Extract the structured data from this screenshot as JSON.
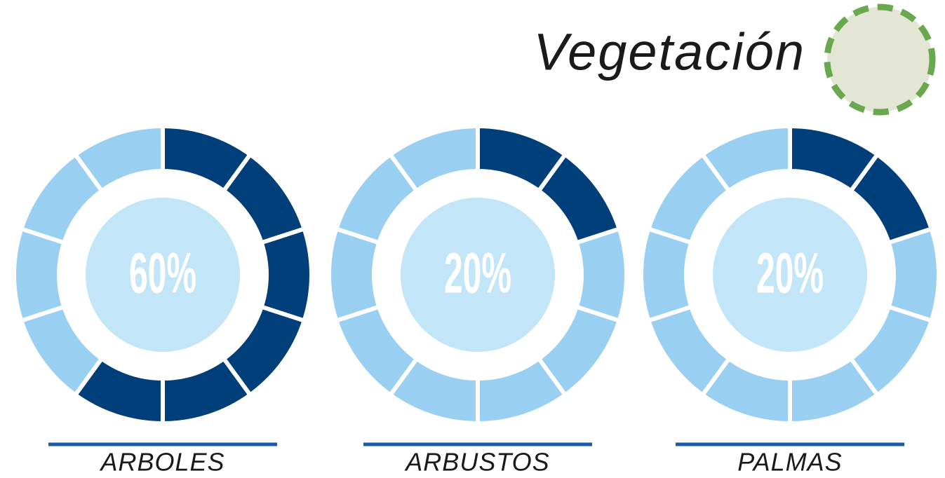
{
  "chart_data": {
    "type": "gauge",
    "title": "Vegetación",
    "categories": [
      "ARBOLES",
      "ARBUSTOS",
      "PALMAS"
    ],
    "values": [
      60,
      20,
      20
    ],
    "value_labels": [
      "60%",
      "20%",
      "20%"
    ],
    "ylim": [
      0,
      100
    ],
    "color": "#003f7a",
    "track_color": "#99cff0",
    "center_color": "#c2e6f7"
  }
}
